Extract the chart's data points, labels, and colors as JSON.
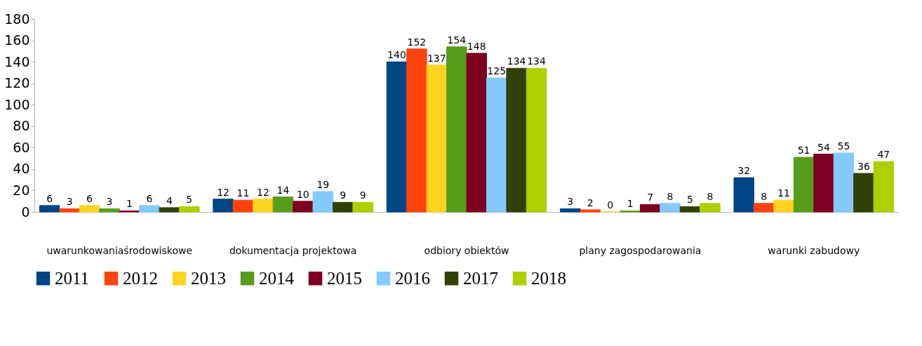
{
  "chart_data": {
    "type": "bar",
    "categories": [
      "uwarunkowaniaśrodowiskowe",
      "dokumentacja projektowa",
      "odbiory obiektów",
      "plany zagospodarowania",
      "warunki zabudowy"
    ],
    "series": [
      {
        "name": "2011",
        "color": "#004586",
        "values": [
          6,
          12,
          140,
          3,
          32
        ]
      },
      {
        "name": "2012",
        "color": "#ff420e",
        "values": [
          3,
          11,
          152,
          2,
          8
        ]
      },
      {
        "name": "2013",
        "color": "#ffd320",
        "values": [
          6,
          12,
          137,
          0,
          11
        ]
      },
      {
        "name": "2014",
        "color": "#579d1c",
        "values": [
          3,
          14,
          154,
          1,
          51
        ]
      },
      {
        "name": "2015",
        "color": "#7e0021",
        "values": [
          1,
          10,
          148,
          7,
          54
        ]
      },
      {
        "name": "2016",
        "color": "#83caff",
        "values": [
          6,
          19,
          125,
          8,
          55
        ]
      },
      {
        "name": "2017",
        "color": "#314004",
        "values": [
          4,
          9,
          134,
          5,
          36
        ]
      },
      {
        "name": "2018",
        "color": "#aecf00",
        "values": [
          5,
          9,
          134,
          8,
          47
        ]
      }
    ],
    "ylim": [
      0,
      180
    ],
    "yticks": [
      0,
      20,
      40,
      60,
      80,
      100,
      120,
      140,
      160,
      180
    ],
    "grid": false,
    "legend": "bottom",
    "data_labels": true
  }
}
